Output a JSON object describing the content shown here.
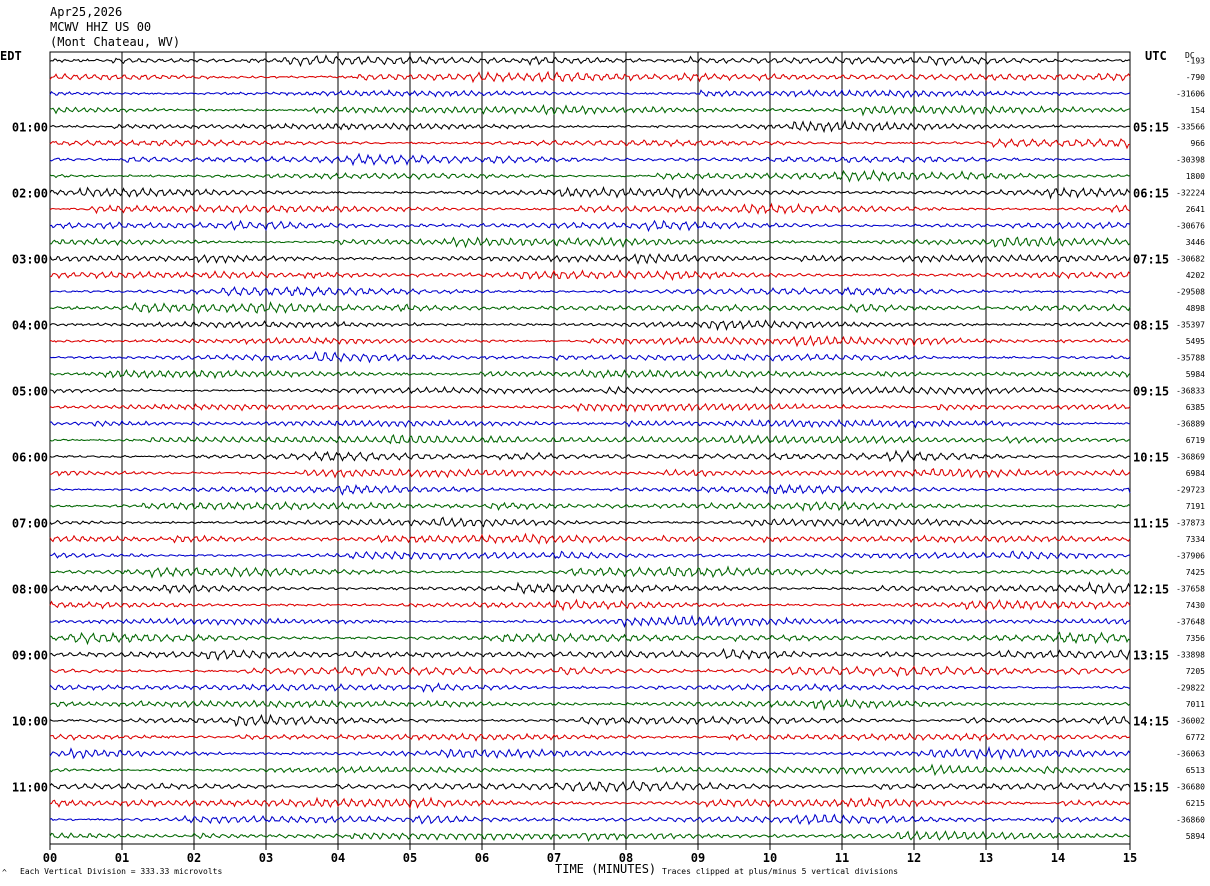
{
  "header": {
    "date": "Apr25,2026",
    "station": "MCWV HHZ US 00",
    "location": "(Mont Chateau, WV)"
  },
  "left_timezone": "EDT",
  "right_timezone": "UTC",
  "dc_label": "DC",
  "x_axis_title": "TIME (MINUTES)",
  "footer": {
    "scale_note": "Each Vertical Division =  333.33 microvolts",
    "clip_note": "Traces clipped at plus/minus 5 vertical divisions"
  },
  "colors": {
    "trace_cycle": [
      "#000000",
      "#dd0000",
      "#0000cc",
      "#006600"
    ],
    "grid": "#000000"
  },
  "chart_data": {
    "type": "line",
    "title": "",
    "xlabel": "TIME (MINUTES)",
    "x_range": [
      0,
      15
    ],
    "x_ticks": [
      "00",
      "01",
      "02",
      "03",
      "04",
      "05",
      "06",
      "07",
      "08",
      "09",
      "10",
      "11",
      "12",
      "13",
      "14",
      "15"
    ],
    "trace_minutes": 15,
    "left_hour_labels": [
      "01:00",
      "02:00",
      "03:00",
      "04:00",
      "05:00",
      "06:00",
      "07:00",
      "08:00",
      "09:00",
      "10:00",
      "11:00"
    ],
    "right_hour_labels": [
      "05:15",
      "06:15",
      "07:15",
      "08:15",
      "09:15",
      "10:15",
      "11:15",
      "12:15",
      "13:15",
      "14:15",
      "15:15"
    ],
    "dc_offsets": [
      "-193",
      "-790",
      "-31606",
      "154",
      "-33566",
      "966",
      "-30398",
      "1800",
      "-32224",
      "2641",
      "-30676",
      "3446",
      "-30682",
      "4202",
      "-29508",
      "4898",
      "-35397",
      "5495",
      "-35788",
      "5984",
      "-36833",
      "6385",
      "-36889",
      "6719",
      "-36869",
      "6984",
      "-29723",
      "7191",
      "-37873",
      "7334",
      "-37906",
      "7425",
      "-37658",
      "7430",
      "-37648",
      "7356",
      "-33898",
      "7205",
      "-29822",
      "7011",
      "-36002",
      "6772",
      "-36063",
      "6513",
      "-36680",
      "6215",
      "-36860",
      "5894"
    ]
  }
}
